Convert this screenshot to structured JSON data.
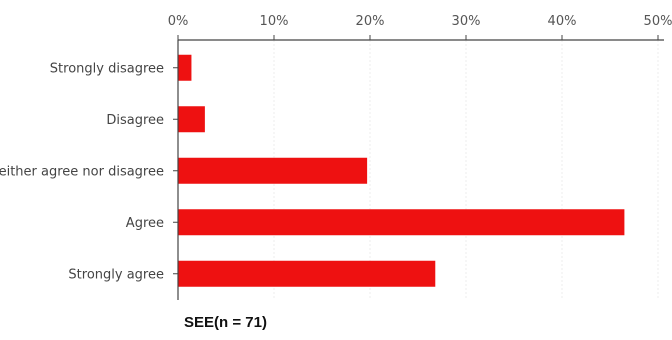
{
  "chart_data": {
    "type": "bar",
    "orientation": "horizontal",
    "categories": [
      "Strongly disagree",
      "Disagree",
      "Neither agree nor disagree",
      "Agree",
      "Strongly agree"
    ],
    "values": [
      1.4,
      2.8,
      19.7,
      46.5,
      26.8
    ],
    "unit": "%",
    "xlim": [
      0,
      50
    ],
    "xticks": [
      0,
      10,
      20,
      30,
      40,
      50
    ],
    "xtick_labels": [
      "0%",
      "10%",
      "20%",
      "30%",
      "40%",
      "50%"
    ],
    "axis_position": "top",
    "grid": true,
    "bar_color": "#ee1111",
    "caption": "SEE(n = 71)"
  }
}
